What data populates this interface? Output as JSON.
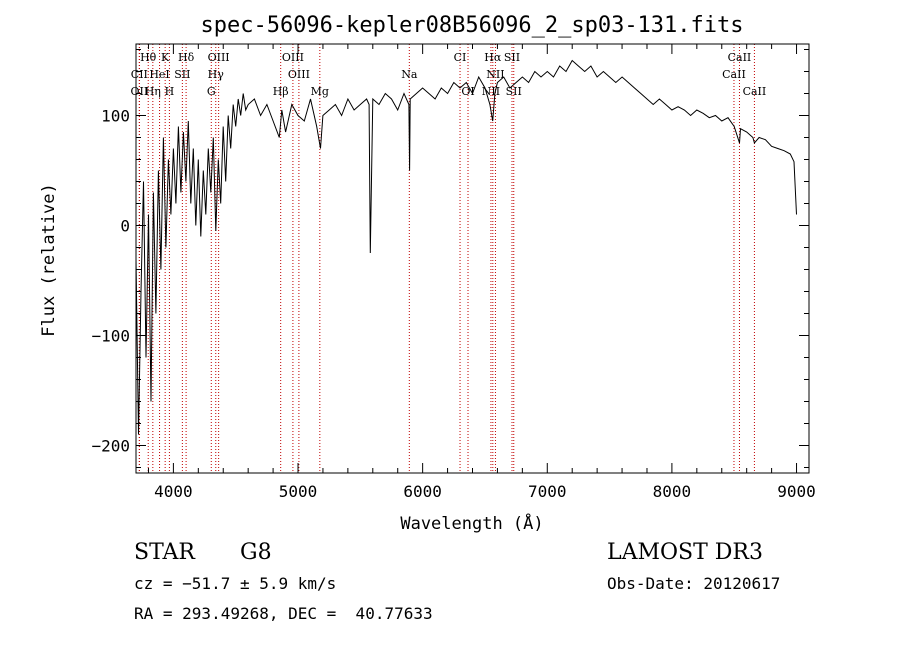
{
  "chart_data": {
    "type": "line",
    "title": "spec-56096-kepler08B56096_2_sp03-131.fits",
    "xlabel": "Wavelength (Å)",
    "ylabel": "Flux (relative)",
    "xlim": [
      3700,
      9100
    ],
    "ylim": [
      -225,
      165
    ],
    "xticks": [
      4000,
      5000,
      6000,
      7000,
      8000,
      9000
    ],
    "xtick_labels": [
      "4000",
      "5000",
      "6000",
      "7000",
      "8000",
      "9000"
    ],
    "yticks": [
      -200,
      -100,
      0,
      100
    ],
    "ytick_labels": [
      "−200",
      "−100",
      "0",
      "100"
    ],
    "series": [
      {
        "name": "spectrum",
        "x": [
          3700,
          3720,
          3740,
          3760,
          3780,
          3800,
          3820,
          3840,
          3860,
          3880,
          3900,
          3920,
          3940,
          3960,
          3980,
          4000,
          4020,
          4040,
          4060,
          4080,
          4100,
          4120,
          4140,
          4160,
          4180,
          4200,
          4220,
          4240,
          4260,
          4280,
          4300,
          4320,
          4340,
          4360,
          4380,
          4400,
          4420,
          4440,
          4460,
          4480,
          4500,
          4520,
          4540,
          4560,
          4580,
          4600,
          4650,
          4700,
          4750,
          4800,
          4850,
          4870,
          4900,
          4950,
          5000,
          5050,
          5100,
          5150,
          5180,
          5200,
          5250,
          5300,
          5350,
          5400,
          5450,
          5500,
          5550,
          5570,
          5575,
          5580,
          5600,
          5650,
          5700,
          5750,
          5800,
          5850,
          5890,
          5895,
          5900,
          5950,
          6000,
          6050,
          6100,
          6150,
          6200,
          6250,
          6300,
          6350,
          6400,
          6450,
          6500,
          6540,
          6562,
          6580,
          6600,
          6650,
          6700,
          6750,
          6800,
          6850,
          6900,
          6950,
          7000,
          7050,
          7100,
          7150,
          7200,
          7250,
          7300,
          7350,
          7400,
          7450,
          7500,
          7550,
          7600,
          7650,
          7700,
          7750,
          7800,
          7850,
          7900,
          7950,
          8000,
          8050,
          8100,
          8150,
          8200,
          8250,
          8300,
          8350,
          8400,
          8450,
          8500,
          8542,
          8550,
          8600,
          8650,
          8662,
          8700,
          8750,
          8800,
          8850,
          8900,
          8950,
          8980,
          9000
        ],
        "values": [
          -30,
          -190,
          -60,
          40,
          -120,
          10,
          -160,
          30,
          -80,
          50,
          -40,
          80,
          -20,
          60,
          10,
          70,
          20,
          90,
          30,
          85,
          40,
          95,
          20,
          70,
          0,
          60,
          -10,
          50,
          10,
          70,
          30,
          80,
          -5,
          60,
          20,
          90,
          40,
          100,
          70,
          110,
          90,
          115,
          100,
          120,
          105,
          110,
          115,
          100,
          110,
          95,
          80,
          105,
          85,
          110,
          100,
          95,
          115,
          90,
          70,
          100,
          105,
          110,
          100,
          115,
          105,
          110,
          115,
          110,
          40,
          -25,
          115,
          110,
          120,
          115,
          105,
          120,
          110,
          50,
          115,
          120,
          125,
          120,
          115,
          125,
          120,
          130,
          125,
          130,
          120,
          135,
          125,
          110,
          95,
          120,
          130,
          135,
          125,
          130,
          135,
          130,
          140,
          135,
          140,
          135,
          145,
          140,
          150,
          145,
          140,
          145,
          135,
          140,
          135,
          130,
          135,
          130,
          125,
          120,
          115,
          110,
          115,
          110,
          105,
          108,
          105,
          100,
          105,
          102,
          98,
          100,
          95,
          98,
          90,
          75,
          88,
          85,
          80,
          75,
          80,
          78,
          72,
          70,
          68,
          65,
          58,
          10
        ]
      }
    ],
    "lines": [
      {
        "name": "Hθ",
        "x": 3798,
        "row": 0
      },
      {
        "name": "K",
        "x": 3934,
        "row": 0
      },
      {
        "name": "Hδ",
        "x": 4102,
        "row": 0
      },
      {
        "name": "OIII",
        "x": 4363,
        "row": 0
      },
      {
        "name": "OIII",
        "x": 4959,
        "row": 0
      },
      {
        "name": "CI",
        "x": 6300,
        "row": 0
      },
      {
        "name": "Hα",
        "x": 6563,
        "row": 0
      },
      {
        "name": "SII",
        "x": 6717,
        "row": 0
      },
      {
        "name": "CaII",
        "x": 8542,
        "row": 0
      },
      {
        "name": "CII",
        "x": 3727,
        "row": 1
      },
      {
        "name": "HeI",
        "x": 3889,
        "row": 1
      },
      {
        "name": "SII",
        "x": 4072,
        "row": 1
      },
      {
        "name": "Hγ",
        "x": 4340,
        "row": 1
      },
      {
        "name": "OIII",
        "x": 5007,
        "row": 1
      },
      {
        "name": "Na",
        "x": 5893,
        "row": 1
      },
      {
        "name": "NII",
        "x": 6584,
        "row": 1
      },
      {
        "name": "CaII",
        "x": 8498,
        "row": 1
      },
      {
        "name": "OII",
        "x": 3727,
        "row": 2
      },
      {
        "name": "Hη",
        "x": 3835,
        "row": 2
      },
      {
        "name": "H",
        "x": 3968,
        "row": 2
      },
      {
        "name": "G",
        "x": 4304,
        "row": 2
      },
      {
        "name": "Hβ",
        "x": 4861,
        "row": 2
      },
      {
        "name": "Mg",
        "x": 5175,
        "row": 2
      },
      {
        "name": "OI",
        "x": 6364,
        "row": 2
      },
      {
        "name": "NII",
        "x": 6548,
        "row": 2
      },
      {
        "name": "SII",
        "x": 6731,
        "row": 2
      },
      {
        "name": "CaII",
        "x": 8662,
        "row": 2
      }
    ]
  },
  "info": {
    "class_label": "STAR",
    "subclass": "G8",
    "cz": "cz = −51.7 ± 5.9 km/s",
    "coords": "RA = 293.49268, DEC =  40.77633",
    "survey": "LAMOST DR3",
    "obs_date": "Obs-Date: 20120617"
  }
}
